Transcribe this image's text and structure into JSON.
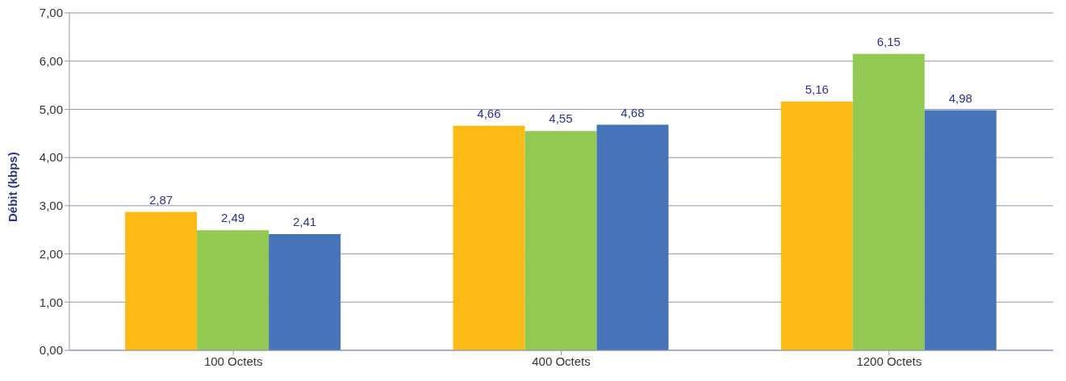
{
  "chart_data": {
    "type": "bar",
    "ylabel": "Débit (kbps)",
    "categories": [
      "100 Octets",
      "400 Octets",
      "1200 Octets"
    ],
    "series": [
      {
        "color": "#fbbb14",
        "values": [
          2.87,
          4.66,
          5.16
        ],
        "value_labels": [
          "2,87",
          "4,66",
          "5,16"
        ]
      },
      {
        "color": "#92c953",
        "values": [
          2.49,
          4.55,
          6.15
        ],
        "value_labels": [
          "2,49",
          "4,55",
          "6,15"
        ]
      },
      {
        "color": "#4774b8",
        "values": [
          2.41,
          4.68,
          4.98
        ],
        "value_labels": [
          "2,41",
          "4,68",
          "4,98"
        ]
      }
    ],
    "ylim": [
      0,
      7
    ],
    "yticks": [
      {
        "value": 0,
        "label": "0,00"
      },
      {
        "value": 1,
        "label": "1,00"
      },
      {
        "value": 2,
        "label": "2,00"
      },
      {
        "value": 3,
        "label": "3,00"
      },
      {
        "value": 4,
        "label": "4,00"
      },
      {
        "value": 5,
        "label": "5,00"
      },
      {
        "value": 6,
        "label": "6,00"
      },
      {
        "value": 7,
        "label": "7,00"
      }
    ],
    "grid": "y",
    "legend": false
  }
}
